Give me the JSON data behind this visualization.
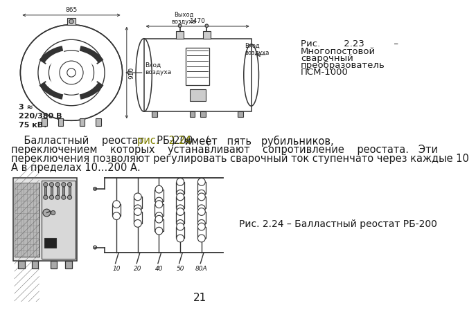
{
  "background_color": "#ffffff",
  "page_number": "21",
  "fig1_caption_line1": "Рис.        2.23          –",
  "fig1_caption_line2": "Многопостовой",
  "fig1_caption_line3": "сварочный",
  "fig1_caption_line4": "преобразователь",
  "fig1_caption_line5": "ПСМ-1000",
  "label_3phase": "3 ≈\n220/380 В\n75 кВт",
  "fig2_caption": "Рис. 2.24 – Балластный реостат РБ-200",
  "link_color": "#808000",
  "text_color": "#1a1a1a",
  "font_size_caption": 9.5,
  "font_size_paragraph": 10.5,
  "font_size_small": 6.5,
  "font_size_page": 11
}
